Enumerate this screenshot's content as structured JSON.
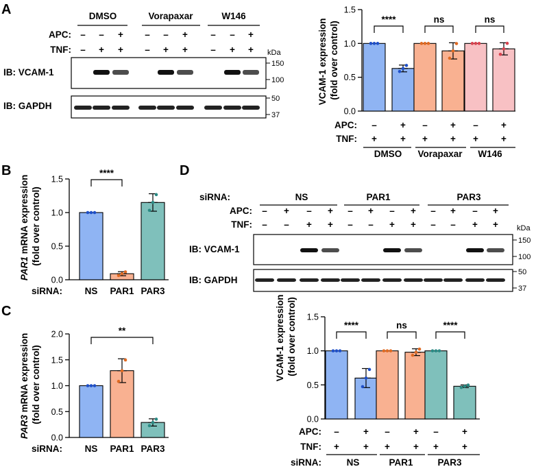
{
  "panels": {
    "a": "A",
    "b": "B",
    "c": "C",
    "d": "D"
  },
  "common": {
    "apc": "APC:",
    "tnf": "TNF:",
    "siRNA": "siRNA:",
    "kda": "kDa",
    "plus": "+",
    "minus": "–",
    "ib_vcam": "IB: VCAM-1",
    "ib_gapdh": "IB: GAPDH"
  },
  "panel_a": {
    "groups": [
      "DMSO",
      "Vorapaxar",
      "W146"
    ],
    "apc": [
      "–",
      "–",
      "+",
      "–",
      "–",
      "+",
      "–",
      "–",
      "+"
    ],
    "tnf": [
      "–",
      "+",
      "+",
      "–",
      "+",
      "+",
      "–",
      "+",
      "+"
    ],
    "vcam_markers": [
      "150",
      "100"
    ],
    "gapdh_markers": [
      "50",
      "37"
    ]
  },
  "panel_d_blot": {
    "groups": [
      "NS",
      "PAR1",
      "PAR3"
    ],
    "apc": [
      "–",
      "+",
      "–",
      "+",
      "–",
      "+",
      "–",
      "+",
      "–",
      "+",
      "–",
      "+"
    ],
    "tnf": [
      "–",
      "–",
      "+",
      "+",
      "–",
      "–",
      "+",
      "+",
      "–",
      "–",
      "+",
      "+"
    ],
    "vcam_markers": [
      "150",
      "100"
    ],
    "gapdh_markers": [
      "50",
      "37"
    ]
  },
  "colors": {
    "blue": "#8fb4f3",
    "blue_pt": "#1e4fc8",
    "orange": "#f9b191",
    "orange_pt": "#e06a22",
    "pink": "#f8c1c4",
    "pink_pt": "#d9434f",
    "teal": "#7fc0bb",
    "teal_pt": "#2a8a84"
  },
  "chart_data": [
    {
      "id": "A",
      "type": "bar",
      "ylabel": "VCAM-1 expression",
      "ylabel2": "(fold over control)",
      "ylim": [
        0,
        1.5
      ],
      "yticks": [
        "0.0",
        "0.5",
        "1.0",
        "1.5"
      ],
      "values": [
        1.0,
        0.63,
        1.0,
        0.89,
        1.0,
        0.92
      ],
      "errors": [
        0,
        0.05,
        0,
        0.12,
        0,
        0.09
      ],
      "colors": [
        "blue",
        "blue",
        "orange",
        "orange",
        "pink",
        "pink"
      ],
      "apc": [
        "–",
        "+",
        "–",
        "+",
        "–",
        "+"
      ],
      "tnf": [
        "+",
        "+",
        "+",
        "+",
        "+",
        "+"
      ],
      "groups": [
        "DMSO",
        "Vorapaxar",
        "W146"
      ],
      "significance": [
        "****",
        "ns",
        "ns"
      ]
    },
    {
      "id": "B",
      "type": "bar",
      "ylabel_italic": "PAR1",
      "ylabel": " mRNA expression",
      "ylabel2": "(fold over control)",
      "ylim": [
        0,
        1.5
      ],
      "yticks": [
        "0.0",
        "0.5",
        "1.0",
        "1.5"
      ],
      "categories": [
        "NS",
        "PAR1",
        "PAR3"
      ],
      "values": [
        1.0,
        0.09,
        1.15
      ],
      "errors": [
        0,
        0.03,
        0.13
      ],
      "colors": [
        "blue",
        "orange",
        "teal"
      ],
      "significance": [
        "****"
      ]
    },
    {
      "id": "C",
      "type": "bar",
      "ylabel_italic": "PAR3",
      "ylabel": " mRNA expression",
      "ylabel2": "(fold over control)",
      "ylim": [
        0,
        2.0
      ],
      "yticks": [
        "0.0",
        "0.5",
        "1.0",
        "1.5",
        "2.0"
      ],
      "categories": [
        "NS",
        "PAR1",
        "PAR3"
      ],
      "values": [
        1.0,
        1.29,
        0.29
      ],
      "errors": [
        0,
        0.23,
        0.07
      ],
      "colors": [
        "blue",
        "orange",
        "teal"
      ],
      "significance": [
        "**"
      ]
    },
    {
      "id": "D",
      "type": "bar",
      "ylabel": "VCAM-1 expression",
      "ylabel2": "(fold over control)",
      "ylim": [
        0,
        1.5
      ],
      "yticks": [
        "0.0",
        "0.5",
        "1.0",
        "1.5"
      ],
      "values": [
        1.0,
        0.6,
        1.0,
        0.98,
        1.0,
        0.48
      ],
      "errors": [
        0,
        0.14,
        0,
        0.05,
        0,
        0.02
      ],
      "colors": [
        "blue",
        "blue",
        "orange",
        "orange",
        "teal",
        "teal"
      ],
      "apc": [
        "–",
        "+",
        "–",
        "+",
        "–",
        "+"
      ],
      "tnf": [
        "+",
        "+",
        "+",
        "+",
        "+",
        "+"
      ],
      "groups": [
        "NS",
        "PAR1",
        "PAR3"
      ],
      "significance": [
        "****",
        "ns",
        "****"
      ]
    }
  ]
}
